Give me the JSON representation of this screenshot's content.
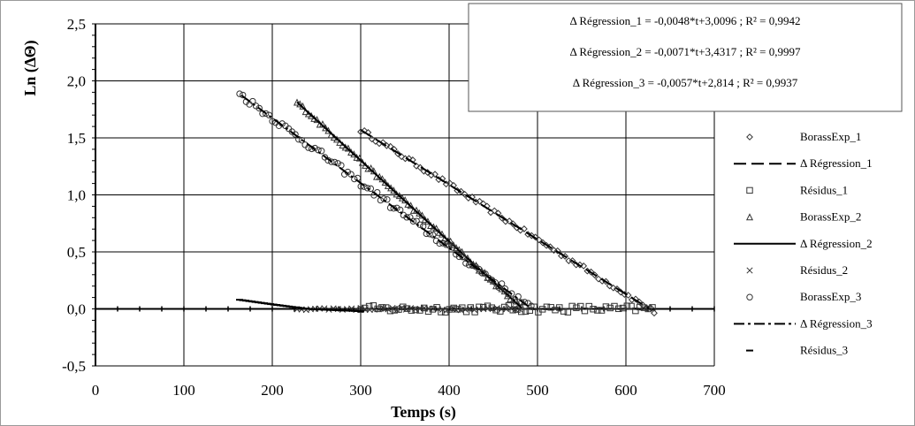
{
  "chart_data": {
    "type": "scatter",
    "title": "",
    "xlabel": "Temps  (s)",
    "ylabel": "Ln (ΔΘ)",
    "xlim": [
      0,
      700
    ],
    "ylim": [
      -0.5,
      2.5
    ],
    "x_ticks": [
      "0",
      "100",
      "200",
      "300",
      "400",
      "500",
      "600",
      "700"
    ],
    "y_ticks": [
      "-0,5",
      "0,0",
      "0,5",
      "1,0",
      "1,5",
      "2,0",
      "2,5"
    ],
    "grid": true,
    "legend_position": "right",
    "equations": [
      "Δ Régression_1 = -0,0048*t+3,0096 ; R² = 0,9942",
      "Δ Régression_2 = -0,0071*t+3,4317 ; R² = 0,9997",
      "Δ Régression_3 = -0,0057*t+2,814 ; R² = 0,9937"
    ],
    "series": [
      {
        "name": "BorassExp_1",
        "kind": "points",
        "marker": "diamond",
        "x_range": [
          300,
          632
        ],
        "slope": -0.0048,
        "intercept": 3.0096,
        "noise": 0.02,
        "count": 80
      },
      {
        "name": "Δ Régression_1",
        "kind": "line",
        "style": "dashed",
        "x": [
          300,
          630
        ],
        "slope": -0.0048,
        "intercept": 3.0096
      },
      {
        "name": "Résidus_1",
        "kind": "points",
        "marker": "square",
        "x_range": [
          300,
          630
        ],
        "y": 0.0,
        "noise": 0.03,
        "count": 70
      },
      {
        "name": "BorassExp_2",
        "kind": "points",
        "marker": "triangle",
        "x_range": [
          228,
          482
        ],
        "slope": -0.0071,
        "intercept": 3.4317,
        "noise": 0.015,
        "count": 80
      },
      {
        "name": "Δ Régression_2",
        "kind": "line",
        "style": "solid",
        "x": [
          228,
          482
        ],
        "slope": -0.0071,
        "intercept": 3.4317
      },
      {
        "name": "Résidus_2",
        "kind": "points",
        "marker": "x",
        "x_range": [
          228,
          480
        ],
        "y": 0.0,
        "noise": 0.01,
        "count": 50
      },
      {
        "name": "BorassExp_3",
        "kind": "points",
        "marker": "circle",
        "x_range": [
          163,
          493
        ],
        "slope": -0.0057,
        "intercept": 2.814,
        "noise": 0.03,
        "count": 90
      },
      {
        "name": "Δ Régression_3",
        "kind": "line",
        "style": "dashdot",
        "x": [
          165,
          490
        ],
        "slope": -0.0057,
        "intercept": 2.814
      },
      {
        "name": "Résidus_3",
        "kind": "points",
        "marker": "dash",
        "x_range": [
          163,
          300
        ],
        "curve": [
          [
            163,
            0.08
          ],
          [
            200,
            0.04
          ],
          [
            240,
            0.0
          ],
          [
            300,
            -0.02
          ]
        ],
        "count": 40
      }
    ]
  }
}
